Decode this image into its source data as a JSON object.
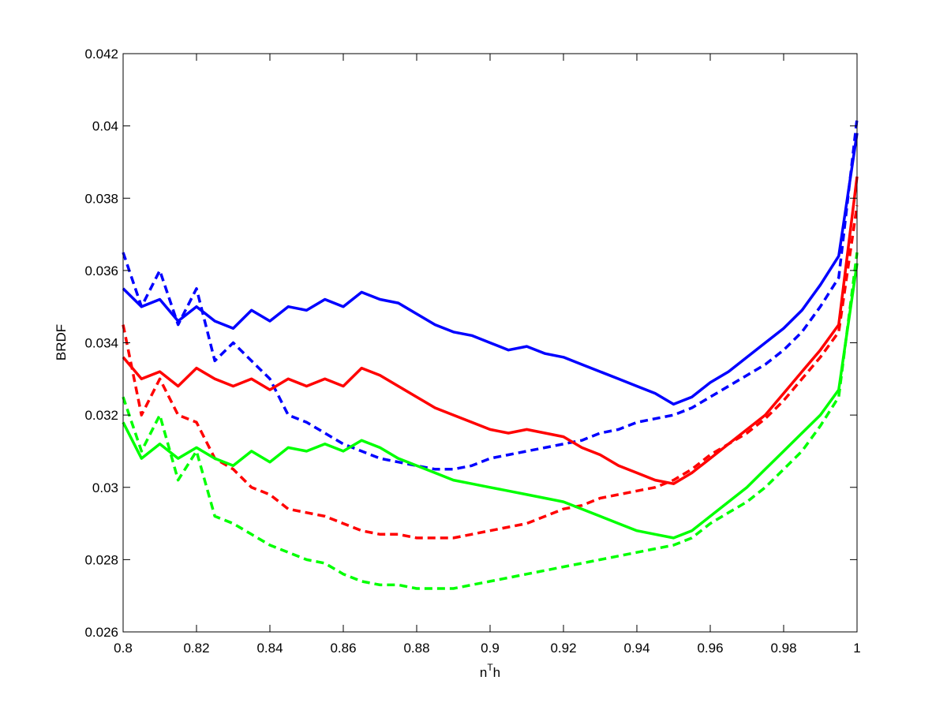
{
  "chart_data": {
    "type": "line",
    "title": "",
    "xlabel": "n",
    "xlabel_sup": "T",
    "xlabel_suffix": "h",
    "ylabel": "BRDF",
    "xlim": [
      0.8,
      1.0
    ],
    "ylim": [
      0.026,
      0.042
    ],
    "x_ticks": [
      0.8,
      0.82,
      0.84,
      0.86,
      0.88,
      0.9,
      0.92,
      0.94,
      0.96,
      0.98,
      1.0
    ],
    "x_tick_labels": [
      "0.8",
      "0.82",
      "0.84",
      "0.86",
      "0.88",
      "0.9",
      "0.92",
      "0.94",
      "0.96",
      "0.98",
      "1"
    ],
    "y_ticks": [
      0.026,
      0.028,
      0.03,
      0.032,
      0.034,
      0.036,
      0.038,
      0.04,
      0.042
    ],
    "y_tick_labels": [
      "0.026",
      "0.028",
      "0.03",
      "0.032",
      "0.034",
      "0.036",
      "0.038",
      "0.04",
      "0.042"
    ],
    "grid": false,
    "legend": "none",
    "series": [
      {
        "color": "#0000ff",
        "dash": "solid",
        "x": [
          0.8,
          0.805,
          0.81,
          0.815,
          0.82,
          0.825,
          0.83,
          0.835,
          0.84,
          0.845,
          0.85,
          0.855,
          0.86,
          0.865,
          0.87,
          0.875,
          0.88,
          0.885,
          0.89,
          0.895,
          0.9,
          0.905,
          0.91,
          0.915,
          0.92,
          0.925,
          0.93,
          0.935,
          0.94,
          0.945,
          0.95,
          0.955,
          0.96,
          0.965,
          0.97,
          0.975,
          0.98,
          0.985,
          0.99,
          0.995,
          1.0
        ],
        "y": [
          0.0355,
          0.035,
          0.0352,
          0.0346,
          0.035,
          0.0346,
          0.0344,
          0.0349,
          0.0346,
          0.035,
          0.0349,
          0.0352,
          0.035,
          0.0354,
          0.0352,
          0.0351,
          0.0348,
          0.0345,
          0.0343,
          0.0342,
          0.034,
          0.0338,
          0.0339,
          0.0337,
          0.0336,
          0.0334,
          0.0332,
          0.033,
          0.0328,
          0.0326,
          0.0323,
          0.0325,
          0.0329,
          0.0332,
          0.0336,
          0.034,
          0.0344,
          0.0349,
          0.0356,
          0.0364,
          0.0398
        ]
      },
      {
        "color": "#0000ff",
        "dash": "dashed",
        "x": [
          0.8,
          0.805,
          0.81,
          0.815,
          0.82,
          0.825,
          0.83,
          0.835,
          0.84,
          0.845,
          0.85,
          0.855,
          0.86,
          0.865,
          0.87,
          0.875,
          0.88,
          0.885,
          0.89,
          0.895,
          0.9,
          0.905,
          0.91,
          0.915,
          0.92,
          0.925,
          0.93,
          0.935,
          0.94,
          0.945,
          0.95,
          0.955,
          0.96,
          0.965,
          0.97,
          0.975,
          0.98,
          0.985,
          0.99,
          0.995,
          1.0
        ],
        "y": [
          0.0365,
          0.035,
          0.036,
          0.0345,
          0.0355,
          0.0335,
          0.034,
          0.0335,
          0.033,
          0.032,
          0.0318,
          0.0315,
          0.0312,
          0.031,
          0.0308,
          0.0307,
          0.0306,
          0.0305,
          0.0305,
          0.0306,
          0.0308,
          0.0309,
          0.031,
          0.0311,
          0.0312,
          0.0313,
          0.0315,
          0.0316,
          0.0318,
          0.0319,
          0.032,
          0.0322,
          0.0325,
          0.0328,
          0.0331,
          0.0334,
          0.0338,
          0.0343,
          0.035,
          0.0358,
          0.0402
        ]
      },
      {
        "color": "#ff0000",
        "dash": "solid",
        "x": [
          0.8,
          0.805,
          0.81,
          0.815,
          0.82,
          0.825,
          0.83,
          0.835,
          0.84,
          0.845,
          0.85,
          0.855,
          0.86,
          0.865,
          0.87,
          0.875,
          0.88,
          0.885,
          0.89,
          0.895,
          0.9,
          0.905,
          0.91,
          0.915,
          0.92,
          0.925,
          0.93,
          0.935,
          0.94,
          0.945,
          0.95,
          0.955,
          0.96,
          0.965,
          0.97,
          0.975,
          0.98,
          0.985,
          0.99,
          0.995,
          1.0
        ],
        "y": [
          0.0336,
          0.033,
          0.0332,
          0.0328,
          0.0333,
          0.033,
          0.0328,
          0.033,
          0.0327,
          0.033,
          0.0328,
          0.033,
          0.0328,
          0.0333,
          0.0331,
          0.0328,
          0.0325,
          0.0322,
          0.032,
          0.0318,
          0.0316,
          0.0315,
          0.0316,
          0.0315,
          0.0314,
          0.0311,
          0.0309,
          0.0306,
          0.0304,
          0.0302,
          0.0301,
          0.0304,
          0.0308,
          0.0312,
          0.0316,
          0.032,
          0.0326,
          0.0332,
          0.0338,
          0.0345,
          0.0386
        ]
      },
      {
        "color": "#ff0000",
        "dash": "dashed",
        "x": [
          0.8,
          0.805,
          0.81,
          0.815,
          0.82,
          0.825,
          0.83,
          0.835,
          0.84,
          0.845,
          0.85,
          0.855,
          0.86,
          0.865,
          0.87,
          0.875,
          0.88,
          0.885,
          0.89,
          0.895,
          0.9,
          0.905,
          0.91,
          0.915,
          0.92,
          0.925,
          0.93,
          0.935,
          0.94,
          0.945,
          0.95,
          0.955,
          0.96,
          0.965,
          0.97,
          0.975,
          0.98,
          0.985,
          0.99,
          0.995,
          1.0
        ],
        "y": [
          0.0345,
          0.032,
          0.033,
          0.032,
          0.0318,
          0.0308,
          0.0305,
          0.03,
          0.0298,
          0.0294,
          0.0293,
          0.0292,
          0.029,
          0.0288,
          0.0287,
          0.0287,
          0.0286,
          0.0286,
          0.0286,
          0.0287,
          0.0288,
          0.0289,
          0.029,
          0.0292,
          0.0294,
          0.0295,
          0.0297,
          0.0298,
          0.0299,
          0.03,
          0.0302,
          0.0305,
          0.0309,
          0.0312,
          0.0315,
          0.0319,
          0.0324,
          0.033,
          0.0336,
          0.0343,
          0.0378
        ]
      },
      {
        "color": "#00ff00",
        "dash": "solid",
        "x": [
          0.8,
          0.805,
          0.81,
          0.815,
          0.82,
          0.825,
          0.83,
          0.835,
          0.84,
          0.845,
          0.85,
          0.855,
          0.86,
          0.865,
          0.87,
          0.875,
          0.88,
          0.885,
          0.89,
          0.895,
          0.9,
          0.905,
          0.91,
          0.915,
          0.92,
          0.925,
          0.93,
          0.935,
          0.94,
          0.945,
          0.95,
          0.955,
          0.96,
          0.965,
          0.97,
          0.975,
          0.98,
          0.985,
          0.99,
          0.995,
          1.0
        ],
        "y": [
          0.0318,
          0.0308,
          0.0312,
          0.0308,
          0.0311,
          0.0308,
          0.0306,
          0.031,
          0.0307,
          0.0311,
          0.031,
          0.0312,
          0.031,
          0.0313,
          0.0311,
          0.0308,
          0.0306,
          0.0304,
          0.0302,
          0.0301,
          0.03,
          0.0299,
          0.0298,
          0.0297,
          0.0296,
          0.0294,
          0.0292,
          0.029,
          0.0288,
          0.0287,
          0.0286,
          0.0288,
          0.0292,
          0.0296,
          0.03,
          0.0305,
          0.031,
          0.0315,
          0.032,
          0.0327,
          0.0362
        ]
      },
      {
        "color": "#00ff00",
        "dash": "dashed",
        "x": [
          0.8,
          0.805,
          0.81,
          0.815,
          0.82,
          0.825,
          0.83,
          0.835,
          0.84,
          0.845,
          0.85,
          0.855,
          0.86,
          0.865,
          0.87,
          0.875,
          0.88,
          0.885,
          0.89,
          0.895,
          0.9,
          0.905,
          0.91,
          0.915,
          0.92,
          0.925,
          0.93,
          0.935,
          0.94,
          0.945,
          0.95,
          0.955,
          0.96,
          0.965,
          0.97,
          0.975,
          0.98,
          0.985,
          0.99,
          0.995,
          1.0
        ],
        "y": [
          0.0325,
          0.031,
          0.032,
          0.0302,
          0.031,
          0.0292,
          0.029,
          0.0287,
          0.0284,
          0.0282,
          0.028,
          0.0279,
          0.0276,
          0.0274,
          0.0273,
          0.0273,
          0.0272,
          0.0272,
          0.0272,
          0.0273,
          0.0274,
          0.0275,
          0.0276,
          0.0277,
          0.0278,
          0.0279,
          0.028,
          0.0281,
          0.0282,
          0.0283,
          0.0284,
          0.0286,
          0.029,
          0.0293,
          0.0296,
          0.03,
          0.0305,
          0.031,
          0.0317,
          0.0325,
          0.0365
        ]
      }
    ]
  }
}
